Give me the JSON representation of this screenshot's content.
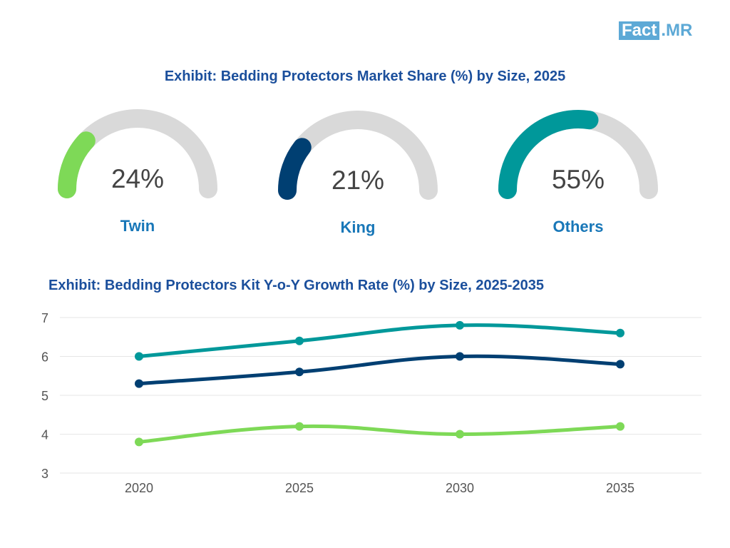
{
  "logo": {
    "part1": "Fact",
    "part2": ".MR"
  },
  "colors": {
    "twin": "#7ed957",
    "king": "#003f72",
    "others": "#00989a",
    "track": "#d9d9d9",
    "title": "#1b4f9c",
    "label": "#1877b8"
  },
  "gauges": {
    "title": "Exhibit: Bedding Protectors Market Share (%) by Size, 2025",
    "items": [
      {
        "label": "Twin",
        "value": 24,
        "display": "24%"
      },
      {
        "label": "King",
        "value": 21,
        "display": "21%"
      },
      {
        "label": "Others",
        "value": 55,
        "display": "55%"
      }
    ]
  },
  "chart_data": {
    "type": "line",
    "title": "Exhibit: Bedding Protectors Kit Y-o-Y Growth Rate (%) by Size, 2025-2035",
    "xlabel": "",
    "ylabel": "",
    "categories": [
      "2020",
      "2025",
      "2030",
      "2035"
    ],
    "ylim": [
      3,
      7
    ],
    "yticks": [
      "3",
      "4",
      "5",
      "6",
      "7"
    ],
    "series": [
      {
        "name": "Others",
        "values": [
          6.0,
          6.4,
          6.8,
          6.6
        ]
      },
      {
        "name": "King",
        "values": [
          5.3,
          5.6,
          6.0,
          5.8
        ]
      },
      {
        "name": "Twin",
        "values": [
          3.8,
          4.2,
          4.0,
          4.2
        ]
      }
    ]
  }
}
